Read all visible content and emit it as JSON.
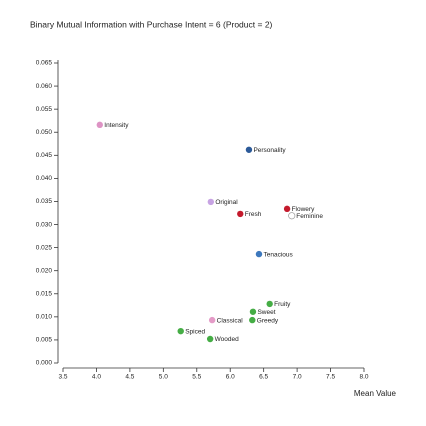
{
  "chart_data": {
    "type": "scatter",
    "title": "Binary Mutual Information with Purchase Intent = 6 (Product = 2)",
    "x_label": "Mean Value",
    "x": [
      4.05,
      6.28,
      5.71,
      6.15,
      6.85,
      6.92,
      6.43,
      6.59,
      6.34,
      6.33,
      5.73,
      5.26,
      5.7
    ],
    "series": [
      {
        "values": [
          0.0516,
          0.0462,
          0.0349,
          0.0323,
          0.0334,
          0.0319,
          0.0236,
          0.0128,
          0.0111,
          0.0093,
          0.0093,
          0.0069,
          0.0052
        ]
      }
    ],
    "labels": [
      "Intensity",
      "Personality",
      "Original",
      "Fresh",
      "Flowery",
      "Feminine",
      "Tenacious",
      "Fruity",
      "Sweet",
      "Greedy",
      "Classical",
      "Spiced",
      "Wooded"
    ],
    "colors": [
      "#dd93c4",
      "#2c5a99",
      "#c7a3e3",
      "#c41a2c",
      "#c41a2c",
      "#ffffff",
      "#3d78bd",
      "#45ad45",
      "#45ad45",
      "#45ad45",
      "#e49bc7",
      "#45ad45",
      "#45ad45"
    ],
    "xlim": [
      3.5,
      8.0
    ],
    "xticks": [
      3.5,
      {
        "value": 4.0,
        "label": "4.0"
      },
      4.5,
      {
        "value": 5.0,
        "label": "5.0"
      },
      5.5,
      {
        "value": 6.0,
        "label": "6.0"
      },
      6.5,
      {
        "value": 7.0,
        "label": "7.0"
      },
      7.5,
      {
        "value": 8.0,
        "label": "8.0"
      }
    ],
    "ylim": [
      0,
      0.065
    ],
    "yticks": [
      {
        "value": 0,
        "label": "0.000"
      },
      0.005,
      {
        "value": 0.01,
        "label": "0.010"
      },
      0.015,
      {
        "value": 0.02,
        "label": "0.020"
      },
      0.025,
      {
        "value": 0.03,
        "label": "0.030"
      },
      0.035,
      {
        "value": 0.04,
        "label": "0.040"
      },
      0.045,
      {
        "value": 0.05,
        "label": "0.050"
      },
      0.055,
      {
        "value": 0.06,
        "label": "0.060"
      },
      0.065
    ]
  }
}
